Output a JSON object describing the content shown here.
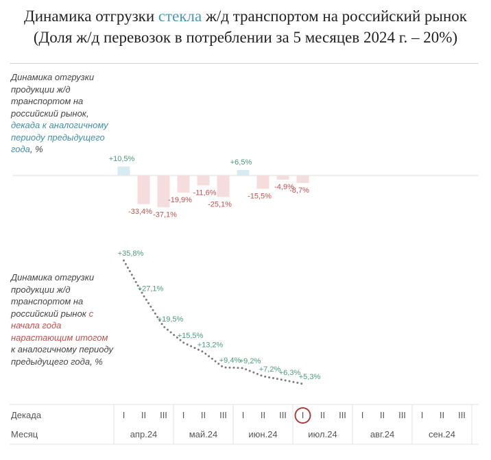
{
  "title": {
    "line1_a": "Динамика отгрузки ",
    "line1_highlight": "стекла",
    "line1_b": " ж/д транспортом на российский рынок",
    "line2": "(Доля ж/д перевозок в потреблении за 5 месяцев 2024 г. – 20%)"
  },
  "top_label": {
    "part1": "Динамика отгрузки продукции ж/д транспортом на российский рынок,",
    "part2": "декада к аналогичному периоду предыдущего года",
    "part3": ", %"
  },
  "bottom_label": {
    "part1": "Динамика отгрузки продукции ж/д транспортом на российский рынок",
    "part2": "с начала года нарастающим итогом",
    "part3": "к аналогичному периоду предыдущего года, %"
  },
  "axis": {
    "row1_label": "Декада",
    "row2_label": "Месяц",
    "decades": [
      "I",
      "II",
      "III"
    ],
    "months": [
      "апр.24",
      "май.24",
      "июн.24",
      "июл.24",
      "авг.24",
      "сен.24"
    ],
    "highlighted_decade_index": 9
  },
  "colors": {
    "positive": "#4a9a78",
    "negative": "#c0504d",
    "bar_positive": "#d8ebf2",
    "bar_negative": "#f6dddd",
    "dots": "#7b7b7b",
    "highlight_circle": "#b03a3a",
    "title_highlight": "#4a98b3"
  },
  "chart_data": [
    {
      "type": "bar",
      "categories": [
        "апр.24 I",
        "апр.24 II",
        "апр.24 III",
        "май.24 I",
        "май.24 II",
        "май.24 III",
        "июн.24 I",
        "июн.24 II",
        "июн.24 III",
        "июл.24 I"
      ],
      "values": [
        10.5,
        -33.4,
        -37.1,
        -19.9,
        -11.6,
        -25.1,
        6.5,
        -15.5,
        -4.9,
        -8.7
      ],
      "labels": [
        "+10,5%",
        "-33,4%",
        "-37,1%",
        "-19,9%",
        "-11,6%",
        "-25,1%",
        "+6,5%",
        "-15,5%",
        "-4,9%",
        "-8,7%"
      ]
    },
    {
      "type": "line",
      "categories": [
        "апр.24 I",
        "апр.24 II",
        "апр.24 III",
        "май.24 I",
        "май.24 II",
        "май.24 III",
        "июн.24 I",
        "июн.24 II",
        "июн.24 III",
        "июл.24 I"
      ],
      "values": [
        35.8,
        27.1,
        19.5,
        15.5,
        13.2,
        9.4,
        9.2,
        7.2,
        6.3,
        5.3
      ],
      "labels": [
        "+35,8%",
        "+27,1%",
        "+19,5%",
        "+15,5%",
        "+13,2%",
        "+9,4%",
        "+9,2%",
        "+7,2%",
        "+6,3%",
        "+5,3%"
      ]
    }
  ]
}
